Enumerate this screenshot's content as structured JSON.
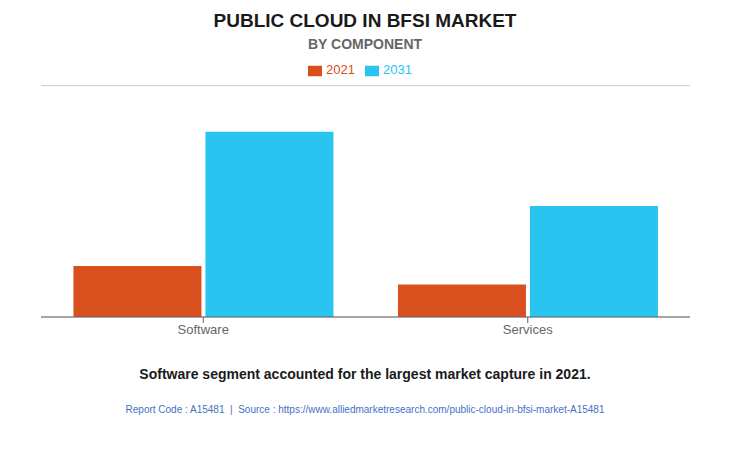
{
  "chart_data": {
    "type": "bar",
    "title": "PUBLIC CLOUD IN BFSI MARKET",
    "subtitle": "BY COMPONENT",
    "categories": [
      "Software",
      "Services"
    ],
    "series": [
      {
        "name": "2021",
        "color": "#D94F1E",
        "values": [
          22,
          14
        ]
      },
      {
        "name": "2031",
        "color": "#29C4F0",
        "values": [
          80,
          48
        ]
      }
    ],
    "ylim": [
      0,
      100
    ],
    "yticks": [
      0,
      20,
      40,
      60,
      80,
      100
    ],
    "grid": true,
    "legend": "top",
    "tick_labels": "x",
    "annotations": [
      "Software segment accounted for the largest market capture in 2021.",
      "Report Code : A15481  |  Source : https://www.alliedmarketresearch.com/public-cloud-in-bfsi-market-A15481"
    ]
  }
}
